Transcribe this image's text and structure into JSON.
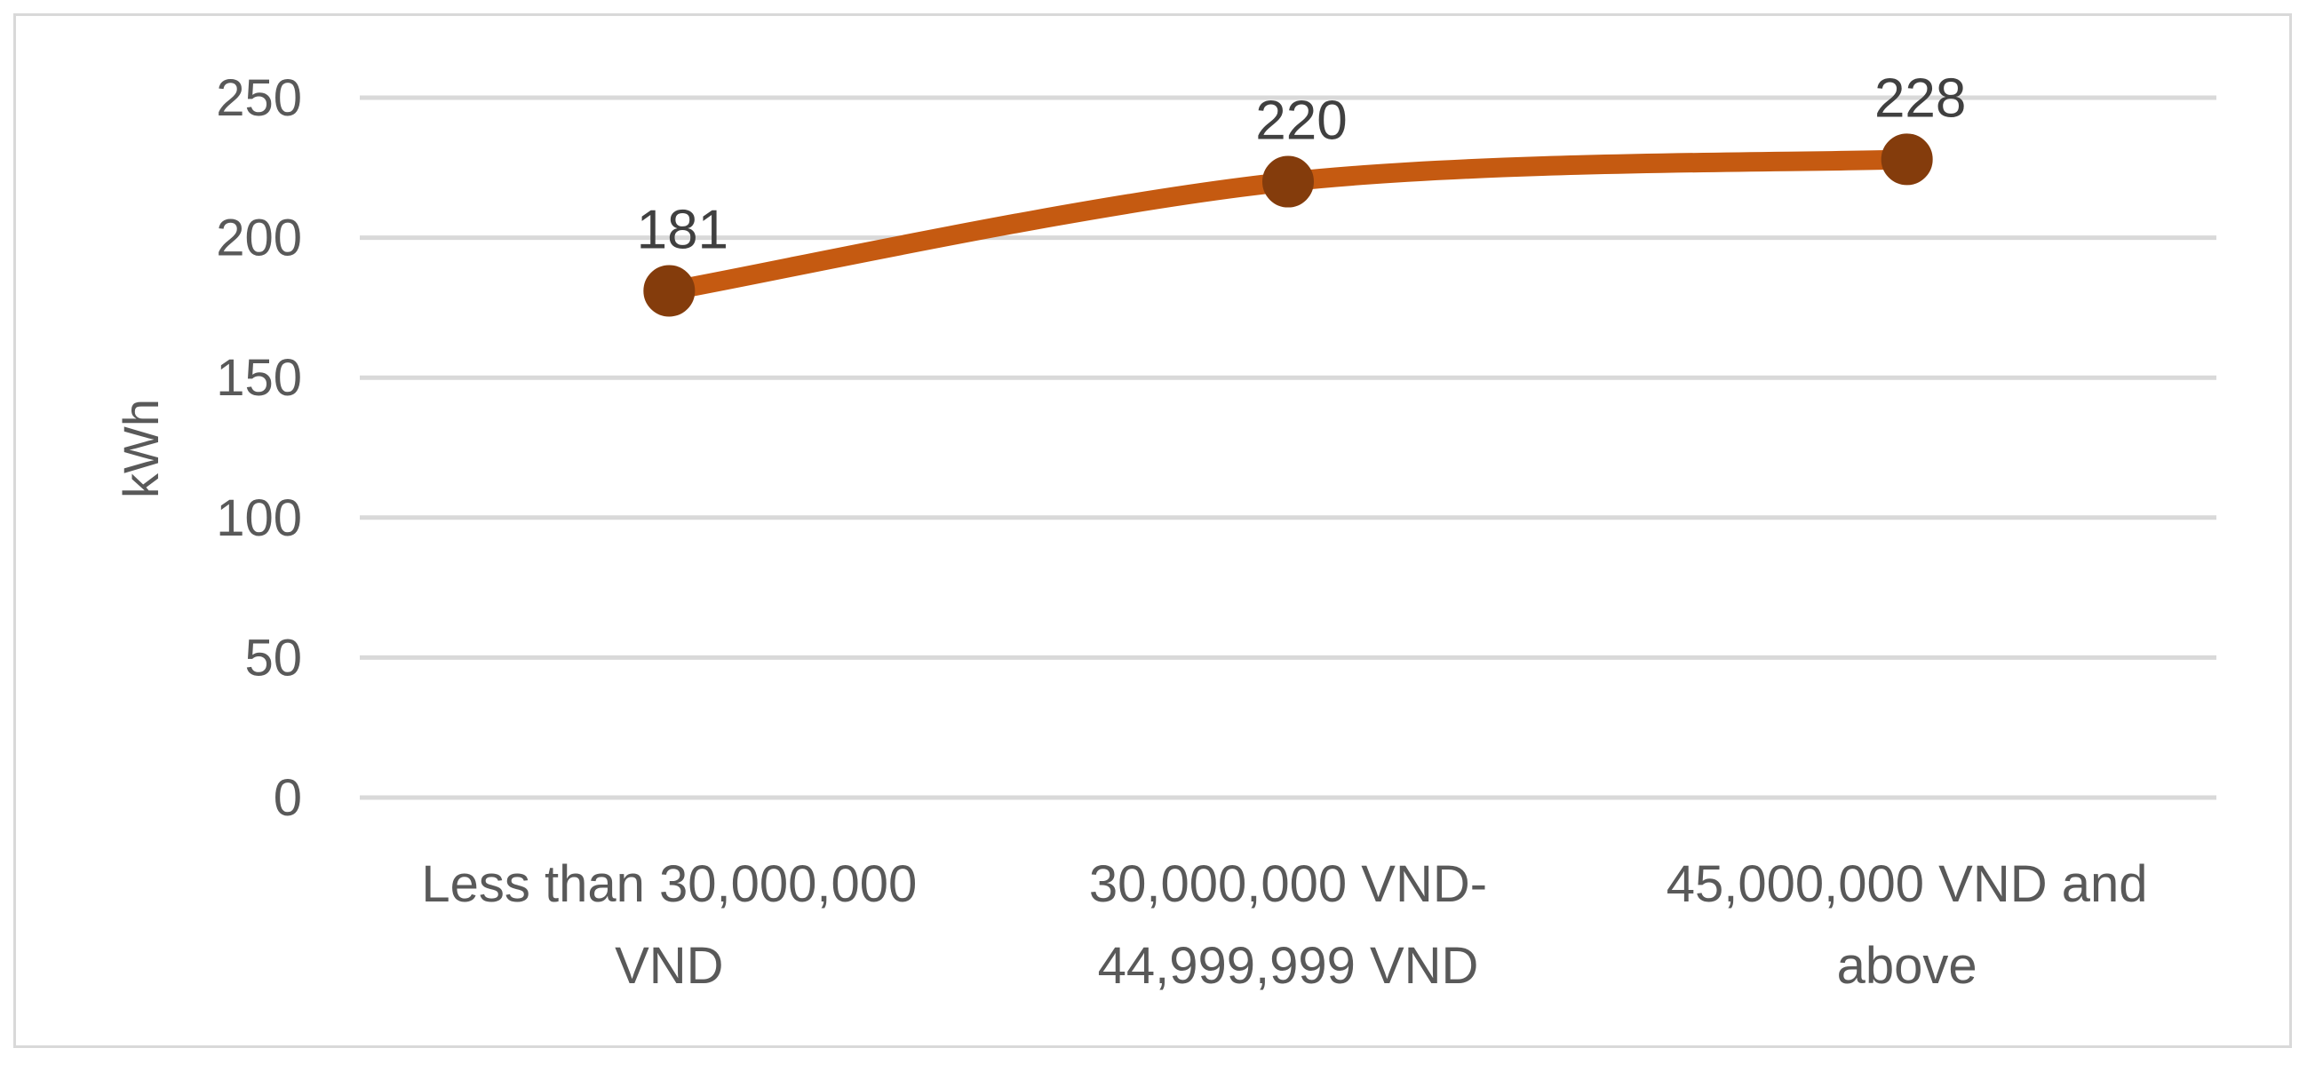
{
  "chart_data": {
    "type": "line",
    "title": "",
    "xlabel": "",
    "ylabel": "kWh",
    "categories": [
      [
        "Less than 30,000,000",
        "VND"
      ],
      [
        "30,000,000 VND-",
        "44,999,999 VND"
      ],
      [
        "45,000,000 VND and",
        "above"
      ]
    ],
    "series": [
      {
        "values": [
          181,
          220,
          228
        ],
        "color": "#C55A11",
        "marker_color": "#843C0C",
        "smooth": true
      }
    ],
    "data_labels": [
      "181",
      "220",
      "228"
    ],
    "ylim": [
      0,
      250
    ],
    "yticks": [
      0,
      50,
      100,
      150,
      200,
      250
    ],
    "grid": true,
    "legend": "none"
  }
}
